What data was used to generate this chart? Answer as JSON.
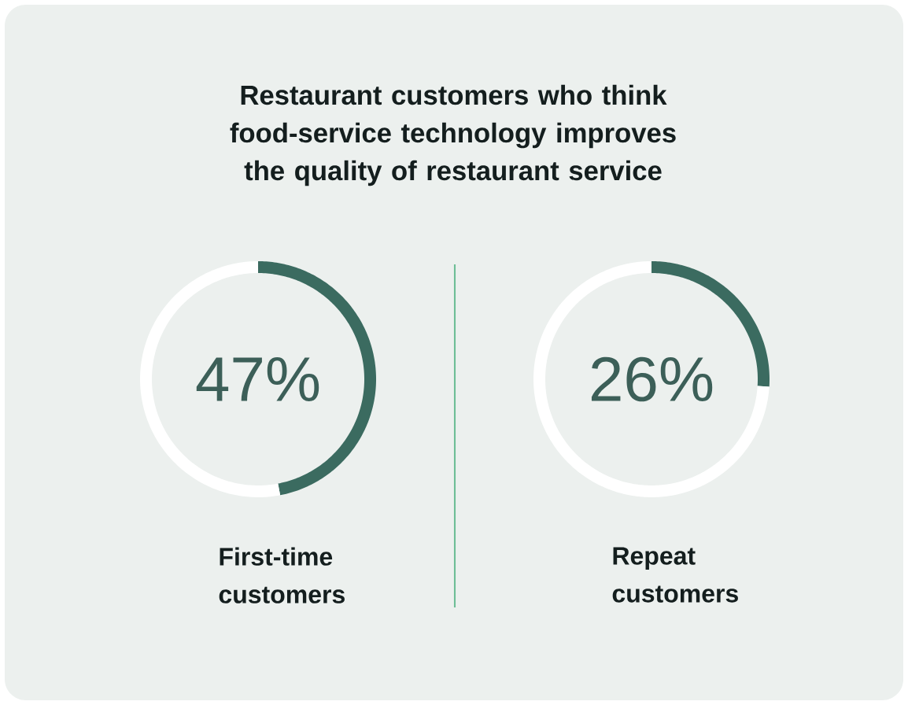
{
  "chart_data": [
    {
      "type": "donut",
      "title": "Restaurant customers who think food-service technology improves the quality of restaurant service",
      "xlabel": "First-time customers",
      "categories": [
        null,
        null
      ],
      "values": [
        47,
        53
      ],
      "colors": [
        "#3b6b60",
        "#ffffff"
      ],
      "value_labels": [
        "47%",
        null
      ]
    },
    {
      "type": "donut",
      "xlabel": "Repeat customers",
      "categories": [
        null,
        null
      ],
      "values": [
        26,
        74
      ],
      "colors": [
        "#3b6b60",
        "#ffffff"
      ],
      "value_labels": [
        "26%",
        null
      ]
    }
  ]
}
